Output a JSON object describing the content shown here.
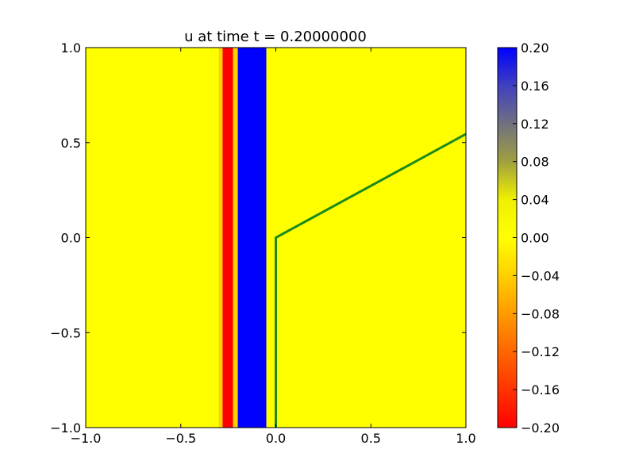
{
  "chart_data": {
    "type": "heatmap",
    "title": "u at time t =     0.20000000",
    "xlabel": "",
    "ylabel": "",
    "xlim": [
      -1.0,
      1.0
    ],
    "ylim": [
      -1.0,
      1.0
    ],
    "x_ticks": [
      "−1.0",
      "−0.5",
      "0.0",
      "0.5",
      "1.0"
    ],
    "x_tick_values": [
      -1.0,
      -0.5,
      0.0,
      0.5,
      1.0
    ],
    "y_ticks": [
      "−1.0",
      "−0.5",
      "0.0",
      "0.5",
      "1.0"
    ],
    "y_tick_values": [
      -1.0,
      -0.5,
      0.0,
      0.5,
      1.0
    ],
    "grid": false,
    "background_value": 0.0,
    "bands": [
      {
        "x0": -0.3,
        "x1": -0.28,
        "value": -0.04
      },
      {
        "x0": -0.28,
        "x1": -0.225,
        "value": -0.2
      },
      {
        "x0": -0.225,
        "x1": -0.2,
        "value": -0.04
      },
      {
        "x0": -0.2,
        "x1": -0.05,
        "value": 0.2
      }
    ],
    "overlay_line": {
      "color": "#1a8a1a",
      "points": [
        [
          0.0,
          -1.0
        ],
        [
          0.0,
          0.0
        ],
        [
          1.0,
          0.545
        ]
      ]
    },
    "colorbar": {
      "min": -0.2,
      "max": 0.2,
      "ticks": [
        "0.20",
        "0.16",
        "0.12",
        "0.08",
        "0.04",
        "0.00",
        "−0.04",
        "−0.08",
        "−0.12",
        "−0.16",
        "−0.20"
      ],
      "tick_values": [
        0.2,
        0.16,
        0.12,
        0.08,
        0.04,
        0.0,
        -0.04,
        -0.08,
        -0.12,
        -0.16,
        -0.2
      ],
      "colors": [
        {
          "value": -0.2,
          "color": "#ff0000"
        },
        {
          "value": -0.1,
          "color": "#ff8000"
        },
        {
          "value": -0.04,
          "color": "#ffd000"
        },
        {
          "value": 0.0,
          "color": "#ffff00"
        },
        {
          "value": 0.04,
          "color": "#f0f000"
        },
        {
          "value": 0.08,
          "color": "#a0a040"
        },
        {
          "value": 0.12,
          "color": "#707080"
        },
        {
          "value": 0.16,
          "color": "#4040c0"
        },
        {
          "value": 0.2,
          "color": "#0000ff"
        }
      ]
    }
  }
}
